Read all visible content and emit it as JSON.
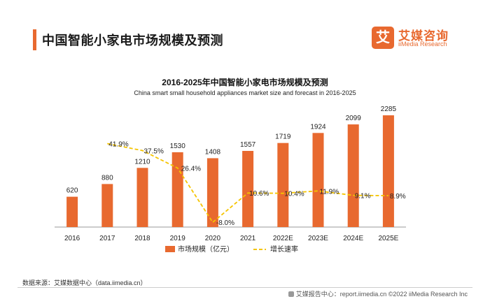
{
  "header": {
    "title": "中国智能小家电市场规模及预测",
    "logo_mark": "艾",
    "logo_cn": "艾媒咨询",
    "logo_en": "iiMedia Research",
    "accent": "#e8692f"
  },
  "chart_data": {
    "type": "bar",
    "title": "2016-2025年中国智能小家电市场规模及预测",
    "subtitle": "China smart small household appliances market size and forecast in 2016-2025",
    "categories": [
      "2016",
      "2017",
      "2018",
      "2019",
      "2020",
      "2021",
      "2022E",
      "2023E",
      "2024E",
      "2025E"
    ],
    "series": [
      {
        "name": "市场规模（亿元）",
        "kind": "bar",
        "color": "#e8692f",
        "values": [
          620,
          880,
          1210,
          1530,
          1408,
          1557,
          1719,
          1924,
          2099,
          2285
        ],
        "labels": [
          "620",
          "880",
          "1210",
          "1530",
          "1408",
          "1557",
          "1719",
          "1924",
          "2099",
          "2285"
        ]
      },
      {
        "name": "增长速率",
        "kind": "line",
        "style": "dashed",
        "color": "#f5c400",
        "values": [
          null,
          41.9,
          37.5,
          26.4,
          -8.0,
          10.6,
          10.4,
          11.9,
          9.1,
          8.9
        ],
        "labels": [
          null,
          "41.9%",
          "37.5%",
          "26.4%",
          "-8.0%",
          "10.6%",
          "10.4%",
          "11.9%",
          "9.1%",
          "8.9%"
        ]
      }
    ],
    "bar_ylim": [
      0,
      2500
    ],
    "line_ylim": [
      -15,
      55
    ],
    "grid": false,
    "legend_position": "bottom"
  },
  "footer": {
    "source": "数据来源：艾媒数据中心（data.iimedia.cn）",
    "copyright": "艾媒报告中心：report.iimedia.cn ©2022  iiMedia Research  Inc"
  }
}
